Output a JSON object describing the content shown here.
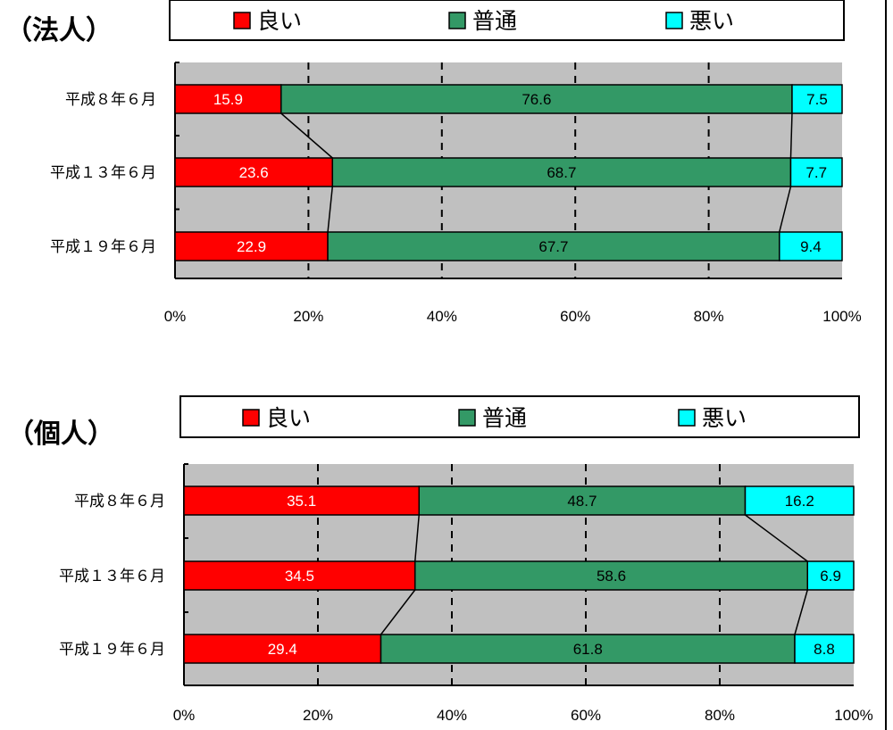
{
  "charts": [
    {
      "title": "（法人）",
      "chart_data": {
        "type": "bar",
        "stacked": true,
        "orientation": "horizontal",
        "percent": true,
        "categories": [
          "平成８年６月",
          "平成１３年６月",
          "平成１９年６月"
        ],
        "series": [
          {
            "name": "良い",
            "values": [
              15.9,
              23.6,
              22.9
            ],
            "color": "#ff0000",
            "label_color": "#ffffff"
          },
          {
            "name": "普通",
            "values": [
              76.6,
              68.7,
              67.7
            ],
            "color": "#339966",
            "label_color": "#000000"
          },
          {
            "name": "悪い",
            "values": [
              7.5,
              7.7,
              9.4
            ],
            "color": "#00ffff",
            "label_color": "#000000"
          }
        ],
        "xlim": [
          0,
          100
        ],
        "xticks": [
          "0%",
          "20%",
          "40%",
          "60%",
          "80%",
          "100%"
        ],
        "grid": "vertical dashed",
        "plot_background": "#c0c0c0",
        "legend": "top"
      }
    },
    {
      "title": "（個人）",
      "chart_data": {
        "type": "bar",
        "stacked": true,
        "orientation": "horizontal",
        "percent": true,
        "categories": [
          "平成８年６月",
          "平成１３年６月",
          "平成１９年６月"
        ],
        "series": [
          {
            "name": "良い",
            "values": [
              35.1,
              34.5,
              29.4
            ],
            "color": "#ff0000",
            "label_color": "#ffffff"
          },
          {
            "name": "普通",
            "values": [
              48.7,
              58.6,
              61.8
            ],
            "color": "#339966",
            "label_color": "#000000"
          },
          {
            "name": "悪い",
            "values": [
              16.2,
              6.9,
              8.8
            ],
            "color": "#00ffff",
            "label_color": "#000000"
          }
        ],
        "xlim": [
          0,
          100
        ],
        "xticks": [
          "0%",
          "20%",
          "40%",
          "60%",
          "80%",
          "100%"
        ],
        "grid": "vertical dashed",
        "plot_background": "#c0c0c0",
        "legend": "top"
      }
    }
  ]
}
